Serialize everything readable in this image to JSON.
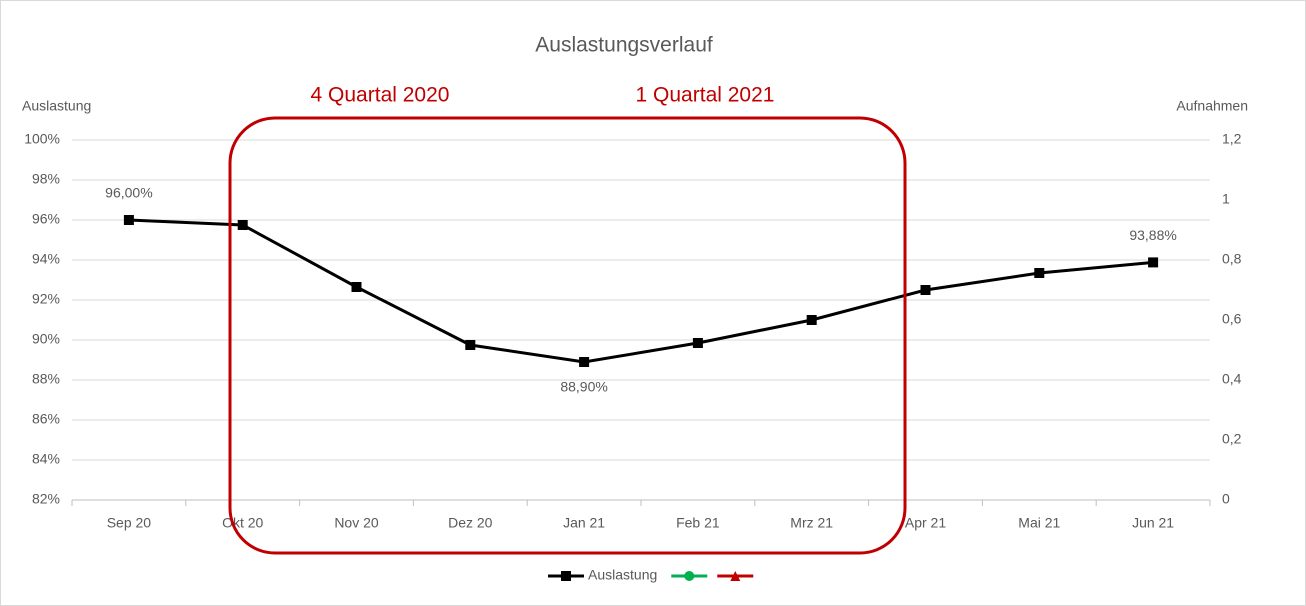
{
  "chart_data": {
    "type": "line",
    "title": "Auslastungsverlauf",
    "y_label": "Auslastung",
    "y2_label": "Aufnahmen",
    "annotations": [
      "4 Quartal 2020",
      "1 Quartal 2021"
    ],
    "categories": [
      "Sep 20",
      "Okt 20",
      "Nov 20",
      "Dez 20",
      "Jan 21",
      "Feb 21",
      "Mrz 21",
      "Apr 21",
      "Mai 21",
      "Jun 21"
    ],
    "series": [
      {
        "name": "Auslastung",
        "color": "#000000",
        "marker": "square",
        "values": [
          96.0,
          95.75,
          92.65,
          89.75,
          88.9,
          89.85,
          91.0,
          92.5,
          93.35,
          93.88
        ],
        "value_labels": [
          "96,00%",
          null,
          null,
          null,
          "88,90%",
          null,
          null,
          null,
          null,
          "93,88%"
        ]
      },
      {
        "name": null,
        "color": "#00b050",
        "marker": "circle",
        "axis": "y2",
        "values": [
          null,
          null,
          null,
          null,
          null,
          null,
          null,
          null,
          null,
          null
        ]
      },
      {
        "name": null,
        "color": "#c00000",
        "marker": "triangle",
        "axis": "y2",
        "values": [
          null,
          null,
          null,
          null,
          null,
          null,
          null,
          null,
          null,
          null
        ]
      }
    ],
    "ylim": [
      82,
      100
    ],
    "yticks": [
      {
        "value": 82,
        "label": "82%"
      },
      {
        "value": 84,
        "label": "84%"
      },
      {
        "value": 86,
        "label": "86%"
      },
      {
        "value": 88,
        "label": "88%"
      },
      {
        "value": 90,
        "label": "90%"
      },
      {
        "value": 92,
        "label": "92%"
      },
      {
        "value": 94,
        "label": "94%"
      },
      {
        "value": 96,
        "label": "96%"
      },
      {
        "value": 98,
        "label": "98%"
      },
      {
        "value": 100,
        "label": "100%"
      }
    ],
    "y2lim": [
      0,
      1.2
    ],
    "y2ticks": [
      0,
      {
        "value": 0.2,
        "label": "0,2"
      },
      {
        "value": 0.4,
        "label": "0,4"
      },
      {
        "value": 0.6,
        "label": "0,6"
      },
      {
        "value": 0.8,
        "label": "0,8"
      },
      1,
      {
        "value": 1.2,
        "label": "1,2"
      }
    ],
    "grid": true,
    "legend": "bottom"
  }
}
